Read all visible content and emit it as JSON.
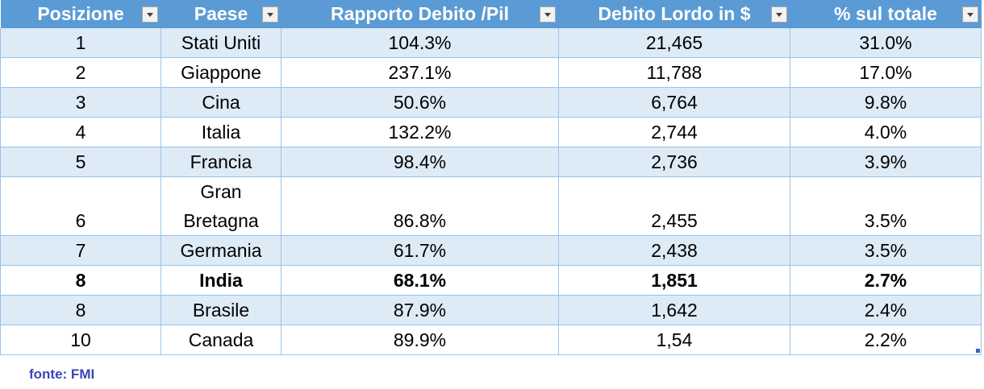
{
  "table": {
    "headers": [
      "Posizione",
      "Paese",
      "Rapporto Debito /Pil",
      "Debito Lordo in $",
      "% sul totale"
    ],
    "rows": [
      [
        "1",
        "Stati Uniti",
        "104.3%",
        "21,465",
        "31.0%"
      ],
      [
        "2",
        "Giappone",
        "237.1%",
        "11,788",
        "17.0%"
      ],
      [
        "3",
        "Cina",
        "50.6%",
        "6,764",
        "9.8%"
      ],
      [
        "4",
        "Italia",
        "132.2%",
        "2,744",
        "4.0%"
      ],
      [
        "5",
        "Francia",
        "98.4%",
        "2,736",
        "3.9%"
      ],
      [
        "6",
        "Gran Bretagna",
        "86.8%",
        "2,455",
        "3.5%"
      ],
      [
        "7",
        "Germania",
        "61.7%",
        "2,438",
        "3.5%"
      ],
      [
        "8",
        "India",
        "68.1%",
        "1,851",
        "2.7%"
      ],
      [
        "8",
        "Brasile",
        "87.9%",
        "1,642",
        "2.4%"
      ],
      [
        "10",
        "Canada",
        "89.9%",
        "1,54",
        "2.2%"
      ]
    ],
    "highlighted_row": 7
  },
  "source": "fonte: FMI",
  "colors": {
    "header_bg": "#5b9bd5",
    "band_bg": "#ddebf7",
    "border": "#9bc2e6",
    "source_text": "#3c45b8"
  }
}
